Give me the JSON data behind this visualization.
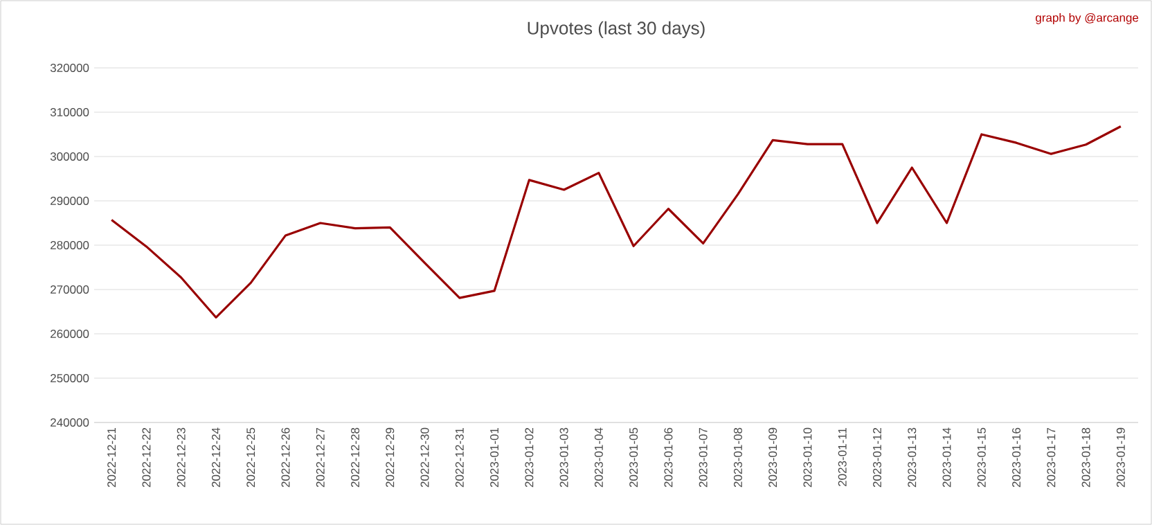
{
  "chart_data": {
    "type": "line",
    "title": "Upvotes (last 30 days)",
    "annotations": [
      "graph by @arcange"
    ],
    "categories": [
      "2022-12-21",
      "2022-12-22",
      "2022-12-23",
      "2022-12-24",
      "2022-12-25",
      "2022-12-26",
      "2022-12-27",
      "2022-12-28",
      "2022-12-29",
      "2022-12-30",
      "2022-12-31",
      "2023-01-01",
      "2023-01-02",
      "2023-01-03",
      "2023-01-04",
      "2023-01-05",
      "2023-01-06",
      "2023-01-07",
      "2023-01-08",
      "2023-01-09",
      "2023-01-10",
      "2023-01-11",
      "2023-01-12",
      "2023-01-13",
      "2023-01-14",
      "2023-01-15",
      "2023-01-16",
      "2023-01-17",
      "2023-01-18",
      "2023-01-19"
    ],
    "series": [
      {
        "color": "#990000",
        "values": [
          285700,
          279700,
          272700,
          263700,
          271500,
          282200,
          285000,
          283800,
          284000,
          276000,
          268100,
          269700,
          294700,
          292500,
          296300,
          279800,
          288200,
          280400,
          291500,
          303700,
          302800,
          302800,
          285000,
          297500,
          285000,
          305000,
          303100,
          300600,
          302700,
          306800
        ]
      }
    ],
    "ylim": [
      240000,
      320000
    ],
    "yticks": [
      240000,
      250000,
      260000,
      270000,
      280000,
      290000,
      300000,
      310000,
      320000
    ],
    "grid": "y",
    "marker": "none",
    "line_style": "solid"
  }
}
